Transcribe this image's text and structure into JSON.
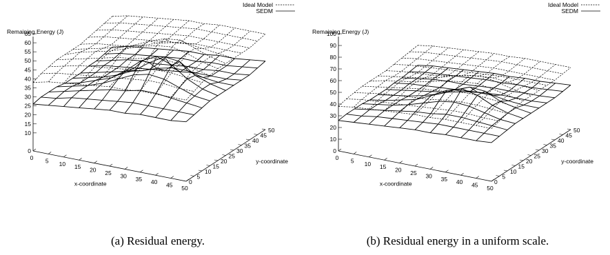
{
  "chart_data": [
    {
      "type": "surface3d",
      "caption": "(a) Residual energy.",
      "zlabel": "Remaining Energy (J)",
      "xlabel": "x-coordinate",
      "ylabel": "y-coordinate",
      "xticks": [
        0,
        5,
        10,
        15,
        20,
        25,
        30,
        35,
        40,
        45,
        50
      ],
      "yticks": [
        0,
        5,
        10,
        15,
        20,
        25,
        30,
        35,
        40,
        45,
        50
      ],
      "zticks": [
        10,
        15,
        20,
        25,
        30,
        35,
        40,
        45,
        50,
        55,
        60,
        65
      ],
      "zlim": [
        0,
        65
      ],
      "legend_position": "top-right",
      "series": [
        {
          "name": "Ideal Model",
          "style": "dashed",
          "x": [
            0,
            5,
            10,
            15,
            20,
            25,
            30,
            35,
            40,
            45,
            50
          ],
          "y": [
            0,
            5,
            10,
            15,
            20,
            25,
            30,
            35,
            40,
            45,
            50
          ],
          "z": [
            [
              38,
              40,
              41,
              42,
              42,
              42,
              42,
              43,
              44,
              45,
              46
            ],
            [
              40,
              42,
              43,
              44,
              45,
              44,
              44,
              45,
              46,
              47,
              48
            ],
            [
              41,
              43,
              45,
              46,
              47,
              46,
              45,
              46,
              47,
              48,
              49
            ],
            [
              42,
              44,
              46,
              48,
              49,
              48,
              46,
              47,
              48,
              49,
              50
            ],
            [
              43,
              45,
              47,
              50,
              52,
              51,
              48,
              48,
              49,
              50,
              51
            ],
            [
              44,
              46,
              48,
              51,
              55,
              55,
              51,
              49,
              50,
              51,
              52
            ],
            [
              44,
              47,
              50,
              53,
              57,
              58,
              53,
              50,
              51,
              52,
              52
            ],
            [
              45,
              48,
              51,
              54,
              58,
              59,
              54,
              51,
              51,
              52,
              53
            ],
            [
              45,
              48,
              51,
              53,
              56,
              56,
              53,
              51,
              51,
              52,
              53
            ],
            [
              45,
              47,
              50,
              52,
              53,
              53,
              52,
              51,
              51,
              52,
              53
            ],
            [
              45,
              47,
              49,
              50,
              51,
              51,
              51,
              51,
              51,
              52,
              53
            ]
          ]
        },
        {
          "name": "SEDM",
          "style": "solid",
          "x": [
            0,
            5,
            10,
            15,
            20,
            25,
            30,
            35,
            40,
            45,
            50
          ],
          "y": [
            0,
            5,
            10,
            15,
            20,
            25,
            30,
            35,
            40,
            45,
            50
          ],
          "z": [
            [
              26,
              27,
              27,
              27,
              26,
              26,
              26,
              27,
              27,
              28,
              29
            ],
            [
              27,
              28,
              29,
              29,
              28,
              28,
              28,
              29,
              29,
              30,
              31
            ],
            [
              28,
              30,
              31,
              31,
              31,
              30,
              30,
              30,
              31,
              31,
              32
            ],
            [
              29,
              31,
              33,
              34,
              34,
              33,
              32,
              31,
              32,
              32,
              33
            ],
            [
              30,
              32,
              35,
              38,
              40,
              37,
              34,
              32,
              32,
              33,
              34
            ],
            [
              31,
              33,
              36,
              42,
              47,
              43,
              37,
              33,
              33,
              34,
              35
            ],
            [
              31,
              34,
              38,
              44,
              51,
              48,
              39,
              34,
              34,
              34,
              35
            ],
            [
              32,
              34,
              38,
              43,
              48,
              47,
              39,
              35,
              34,
              35,
              36
            ],
            [
              32,
              34,
              37,
              40,
              42,
              41,
              37,
              35,
              35,
              35,
              36
            ],
            [
              32,
              34,
              36,
              37,
              38,
              38,
              36,
              35,
              35,
              36,
              37
            ],
            [
              33,
              34,
              35,
              36,
              36,
              36,
              36,
              36,
              36,
              37,
              38
            ]
          ]
        }
      ]
    },
    {
      "type": "surface3d",
      "caption": "(b) Residual energy in a uniform scale.",
      "zlabel": "Remaining Energy (J)",
      "xlabel": "x-coordinate",
      "ylabel": "y-coordinate",
      "xticks": [
        0,
        5,
        10,
        15,
        20,
        25,
        30,
        35,
        40,
        45,
        50
      ],
      "yticks": [
        0,
        5,
        10,
        15,
        20,
        25,
        30,
        35,
        40,
        45,
        50
      ],
      "zticks": [
        10,
        20,
        30,
        40,
        50,
        60,
        70,
        80,
        90,
        100
      ],
      "zlim": [
        0,
        100
      ],
      "legend_position": "top-right",
      "series": [
        {
          "name": "Ideal Model",
          "style": "dashed",
          "x": [
            0,
            5,
            10,
            15,
            20,
            25,
            30,
            35,
            40,
            45,
            50
          ],
          "y": [
            0,
            5,
            10,
            15,
            20,
            25,
            30,
            35,
            40,
            45,
            50
          ],
          "z": [
            [
              38,
              40,
              41,
              42,
              42,
              42,
              42,
              43,
              44,
              45,
              46
            ],
            [
              40,
              42,
              43,
              44,
              45,
              44,
              44,
              45,
              46,
              47,
              48
            ],
            [
              41,
              43,
              45,
              46,
              47,
              46,
              45,
              46,
              47,
              48,
              49
            ],
            [
              42,
              44,
              46,
              48,
              49,
              48,
              46,
              47,
              48,
              49,
              50
            ],
            [
              43,
              45,
              47,
              50,
              52,
              51,
              48,
              48,
              49,
              50,
              51
            ],
            [
              44,
              46,
              48,
              51,
              55,
              55,
              51,
              49,
              50,
              51,
              52
            ],
            [
              44,
              47,
              50,
              53,
              57,
              58,
              53,
              50,
              51,
              52,
              52
            ],
            [
              45,
              48,
              51,
              54,
              58,
              59,
              54,
              51,
              51,
              52,
              53
            ],
            [
              45,
              48,
              51,
              53,
              56,
              56,
              53,
              51,
              51,
              52,
              53
            ],
            [
              45,
              47,
              50,
              52,
              53,
              53,
              52,
              51,
              51,
              52,
              53
            ],
            [
              45,
              47,
              49,
              50,
              51,
              51,
              51,
              51,
              51,
              52,
              53
            ]
          ]
        },
        {
          "name": "SEDM",
          "style": "solid",
          "x": [
            0,
            5,
            10,
            15,
            20,
            25,
            30,
            35,
            40,
            45,
            50
          ],
          "y": [
            0,
            5,
            10,
            15,
            20,
            25,
            30,
            35,
            40,
            45,
            50
          ],
          "z": [
            [
              26,
              27,
              27,
              27,
              26,
              26,
              26,
              27,
              27,
              28,
              29
            ],
            [
              27,
              28,
              29,
              29,
              28,
              28,
              28,
              29,
              29,
              30,
              31
            ],
            [
              28,
              30,
              31,
              31,
              31,
              30,
              30,
              30,
              31,
              31,
              32
            ],
            [
              29,
              31,
              33,
              34,
              34,
              33,
              32,
              31,
              32,
              32,
              33
            ],
            [
              30,
              32,
              35,
              38,
              40,
              37,
              34,
              32,
              32,
              33,
              34
            ],
            [
              31,
              33,
              36,
              42,
              47,
              43,
              37,
              33,
              33,
              34,
              35
            ],
            [
              31,
              34,
              38,
              44,
              51,
              48,
              39,
              34,
              34,
              34,
              35
            ],
            [
              32,
              34,
              38,
              43,
              48,
              47,
              39,
              35,
              34,
              35,
              36
            ],
            [
              32,
              34,
              37,
              40,
              42,
              41,
              37,
              35,
              35,
              35,
              36
            ],
            [
              32,
              34,
              36,
              37,
              38,
              38,
              36,
              35,
              35,
              36,
              37
            ],
            [
              33,
              34,
              35,
              36,
              36,
              36,
              36,
              36,
              36,
              37,
              38
            ]
          ]
        }
      ]
    }
  ]
}
